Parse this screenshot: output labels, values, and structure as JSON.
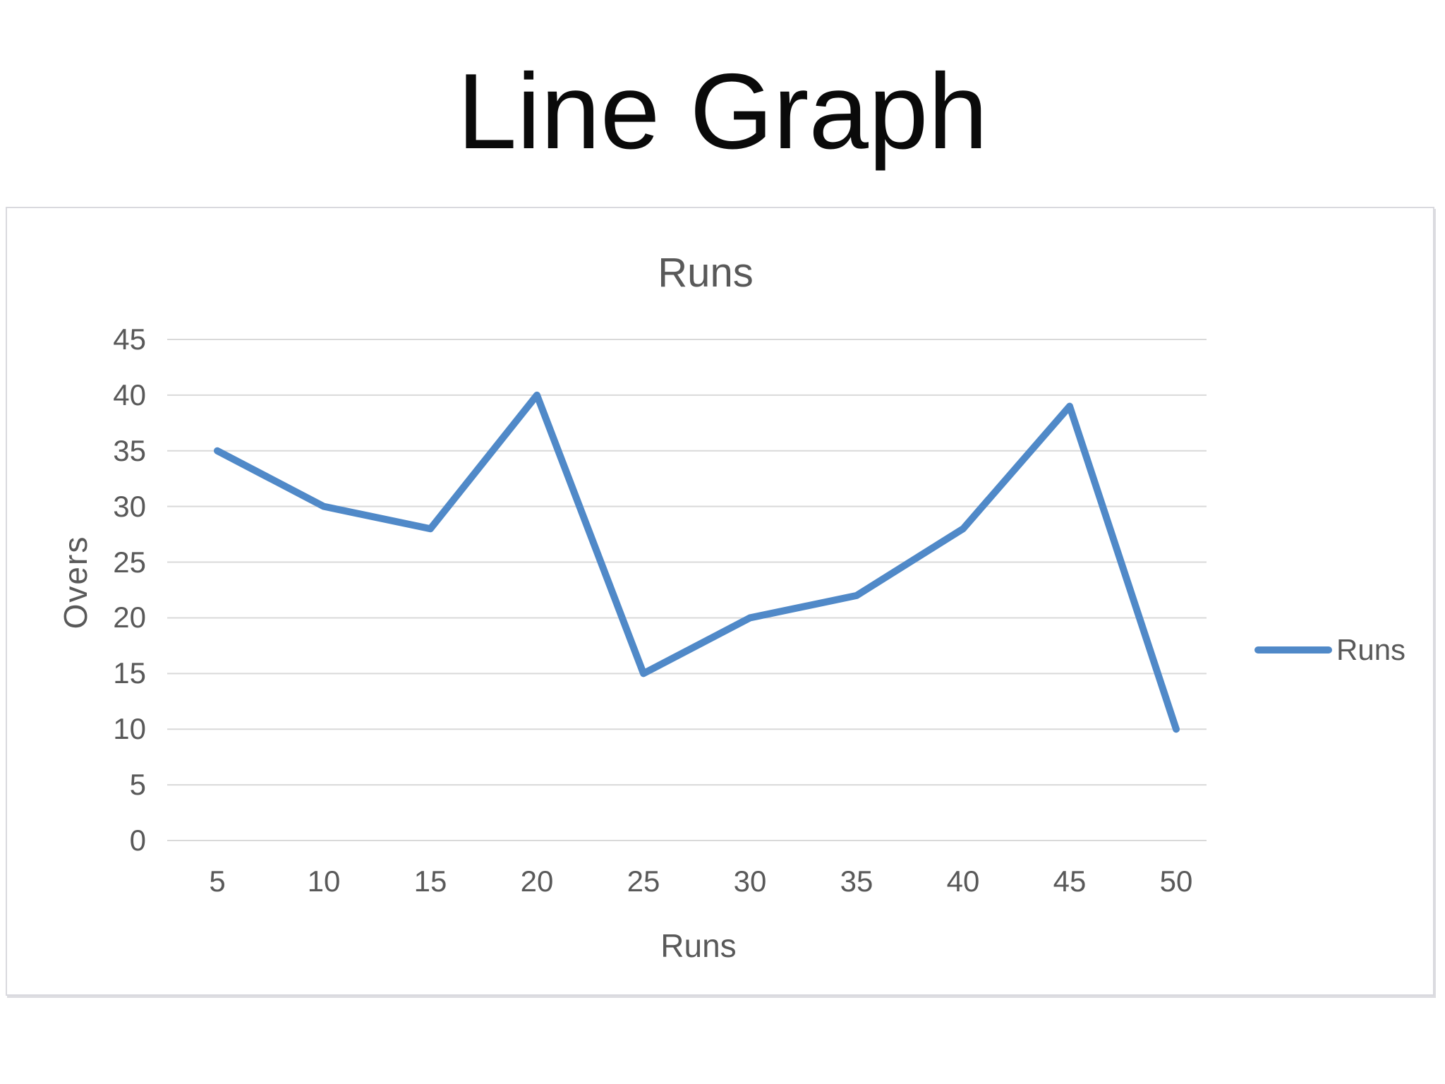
{
  "page": {
    "title": "Line Graph"
  },
  "chart_data": {
    "type": "line",
    "title": "Runs",
    "xlabel": "Runs",
    "ylabel": "Overs",
    "categories": [
      5,
      10,
      15,
      20,
      25,
      30,
      35,
      40,
      45,
      50
    ],
    "series": [
      {
        "name": "Runs",
        "color": "#5089c8",
        "values": [
          35,
          30,
          28,
          40,
          15,
          20,
          22,
          28,
          39,
          10
        ]
      }
    ],
    "yticks": [
      0,
      5,
      10,
      15,
      20,
      25,
      30,
      35,
      40,
      45
    ],
    "ylim": [
      0,
      45
    ],
    "grid": true,
    "legend_position": "right"
  },
  "colors": {
    "gridline": "#d9d9d9",
    "chart_text": "#595959",
    "title_text": "#0a0a0a",
    "card_border": "#d9d9de",
    "background": "#ffffff"
  }
}
